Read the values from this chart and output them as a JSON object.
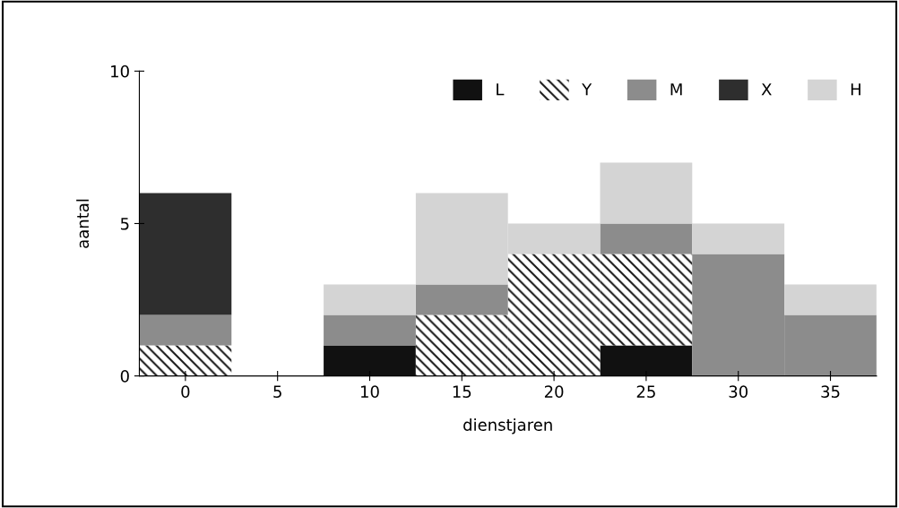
{
  "chart_data": {
    "type": "bar",
    "stacked": true,
    "xlabel": "dienstjaren",
    "ylabel": "aantal",
    "categories": [
      "0",
      "5",
      "10",
      "15",
      "20",
      "25",
      "30",
      "35"
    ],
    "series": [
      {
        "name": "L",
        "color": "#111111",
        "values": [
          0,
          0,
          1,
          0,
          0,
          1,
          0,
          0
        ]
      },
      {
        "name": "Y",
        "color": "#1a1a1a",
        "values": [
          1,
          0,
          0,
          2,
          4,
          3,
          0,
          0
        ]
      },
      {
        "name": "M",
        "color": "#8c8c8c",
        "values": [
          1,
          0,
          1,
          1,
          0,
          1,
          4,
          2
        ]
      },
      {
        "name": "X",
        "color": "#2e2e2e",
        "values": [
          4,
          0,
          0,
          0,
          0,
          0,
          0,
          0
        ]
      },
      {
        "name": "H",
        "color": "#d4d4d4",
        "values": [
          0,
          0,
          1,
          3,
          1,
          2,
          1,
          1
        ]
      }
    ],
    "ylim": [
      0,
      10
    ],
    "yticks": [
      0,
      5,
      10
    ],
    "grid": false,
    "legend": "top right"
  }
}
